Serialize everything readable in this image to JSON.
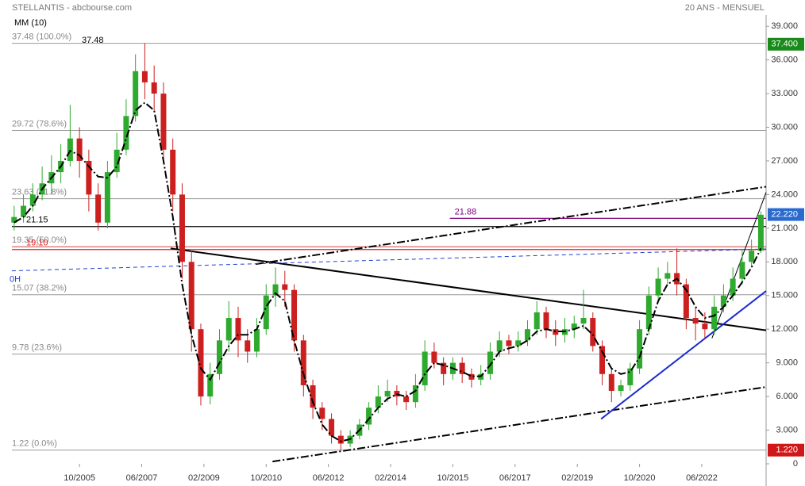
{
  "chart_data": {
    "type": "candlestick",
    "title": "STELLANTIS - abcbourse.com",
    "subtitle": "20 ANS - MENSUEL",
    "indicator_label": "MM (10)",
    "peak_label": "37.48",
    "up_color": "#2eaa2e",
    "down_color": "#cc2020",
    "x": [
      2004,
      2004.25,
      2004.5,
      2004.75,
      2005,
      2005.25,
      2005.5,
      2005.75,
      2006,
      2006.25,
      2006.5,
      2006.75,
      2007,
      2007.25,
      2007.5,
      2007.75,
      2008,
      2008.25,
      2008.5,
      2008.75,
      2009,
      2009.25,
      2009.5,
      2009.75,
      2010,
      2010.25,
      2010.5,
      2010.75,
      2011,
      2011.25,
      2011.5,
      2011.75,
      2012,
      2012.25,
      2012.5,
      2012.75,
      2013,
      2013.25,
      2013.5,
      2013.75,
      2014,
      2014.25,
      2014.5,
      2014.75,
      2015,
      2015.25,
      2015.5,
      2015.75,
      2016,
      2016.25,
      2016.5,
      2016.75,
      2017,
      2017.25,
      2017.5,
      2017.75,
      2018,
      2018.25,
      2018.5,
      2018.75,
      2019,
      2019.25,
      2019.5,
      2019.75,
      2020,
      2020.25,
      2020.5,
      2020.75,
      2021,
      2021.25,
      2021.5,
      2021.75,
      2022,
      2022.25,
      2022.5,
      2022.75,
      2023,
      2023.25,
      2023.5,
      2023.75,
      2024
    ],
    "open": [
      21.5,
      22,
      23,
      24,
      25,
      26,
      27,
      29,
      27,
      24,
      21.5,
      26,
      28,
      31,
      35,
      34,
      33,
      28,
      24,
      18,
      12,
      6,
      8,
      11,
      13,
      11,
      10,
      12,
      15,
      16,
      15.5,
      11,
      7,
      5,
      4,
      2.5,
      1.8,
      2.5,
      3.5,
      5,
      6,
      6.5,
      6,
      5.5,
      7,
      10,
      9,
      8,
      9,
      8,
      7.5,
      8,
      10,
      11,
      10.5,
      11,
      12,
      13.5,
      12,
      11.5,
      12,
      12.5,
      13,
      10.5,
      8,
      6.5,
      7,
      8.5,
      12,
      15,
      16.5,
      17,
      16,
      13,
      12.5,
      12,
      14,
      15,
      16.5,
      18,
      19
    ],
    "high": [
      23,
      24,
      25,
      26.5,
      27.5,
      28.5,
      32,
      30,
      28,
      25,
      27,
      29.5,
      32.5,
      36.5,
      37.48,
      35.5,
      34,
      29,
      25,
      19,
      12.5,
      9,
      12,
      14.5,
      14,
      12,
      13,
      16,
      17.5,
      17.2,
      16,
      11.5,
      7.5,
      5.5,
      4.5,
      3,
      3,
      4,
      5.5,
      7,
      7.5,
      7,
      6.5,
      8,
      11,
      10.8,
      9.5,
      9.5,
      9.5,
      8.5,
      8.8,
      10.8,
      11.8,
      11.5,
      11.8,
      12.8,
      14.5,
      14,
      12.8,
      13,
      13.2,
      15.5,
      13.5,
      11,
      8.5,
      7.5,
      9,
      12.8,
      15.8,
      17.5,
      18,
      19.2,
      16.5,
      14,
      13.5,
      15,
      16,
      17.5,
      19,
      20,
      22.5
    ],
    "low": [
      20.8,
      21.5,
      22.5,
      23.5,
      24,
      25,
      26.5,
      25.5,
      22.5,
      20.8,
      21,
      25.5,
      27.5,
      30.5,
      32.5,
      31.5,
      27,
      22.5,
      16.5,
      10,
      5.2,
      5.3,
      7.5,
      10,
      9.5,
      9,
      9.5,
      11.5,
      14,
      14,
      10,
      6,
      4,
      3,
      1.8,
      1.22,
      1.5,
      2.2,
      3,
      4.5,
      5.5,
      5.2,
      4.8,
      5,
      6.5,
      8.5,
      7,
      7.5,
      7.2,
      6.8,
      7,
      7.5,
      9.5,
      9.8,
      10,
      10.5,
      11.5,
      11.2,
      10.5,
      10.8,
      11.2,
      12,
      10,
      7,
      5.5,
      6,
      6.5,
      8,
      11.5,
      14.5,
      16,
      15,
      12,
      11,
      11.2,
      11.5,
      13.5,
      14.5,
      16,
      17.5,
      18.8
    ],
    "close": [
      22,
      23,
      24,
      25,
      26,
      27,
      29,
      27,
      24,
      21.5,
      26,
      28,
      31,
      35,
      34,
      33,
      28,
      24,
      18,
      12,
      6,
      8,
      11,
      13,
      11,
      10,
      12,
      15,
      16,
      15.5,
      11,
      7,
      5,
      4,
      2.5,
      1.8,
      2.5,
      3.5,
      5,
      6,
      6.5,
      6,
      5.5,
      7,
      10,
      9,
      8,
      9,
      8,
      7.5,
      8,
      10,
      11,
      10.5,
      11,
      12,
      13.5,
      12,
      11.5,
      12,
      12.5,
      13,
      10.5,
      8,
      6.5,
      7,
      8.5,
      12,
      15,
      16.5,
      17,
      16,
      13,
      12.5,
      12,
      14,
      15,
      16.5,
      18,
      19,
      22.2
    ],
    "ma": {
      "name": "MM (10)",
      "color": "#000000",
      "values": [
        21.5,
        22,
        23,
        24.5,
        25.5,
        26.5,
        27.9,
        27.5,
        26.5,
        25.6,
        25.5,
        26.5,
        29,
        31.5,
        32.2,
        31.5,
        27,
        22,
        16,
        11.5,
        8.5,
        7.5,
        9,
        10.5,
        11.5,
        11.5,
        12,
        14,
        15.2,
        14.5,
        11,
        8,
        5.5,
        3.5,
        2.5,
        2,
        2.2,
        3,
        4,
        5,
        5.8,
        6.2,
        6,
        6.5,
        8,
        9,
        8.8,
        8.5,
        8.2,
        7.8,
        7.8,
        8.8,
        10,
        10.3,
        10.5,
        11,
        11.8,
        12,
        11.8,
        11.8,
        12,
        12.3,
        11.5,
        10,
        8.5,
        8,
        8.2,
        9.5,
        12,
        14.5,
        16,
        16.5,
        15.5,
        14,
        13,
        13.2,
        14,
        15,
        16.2,
        17.5,
        19.2
      ]
    },
    "xlim": [
      2003.94,
      2024.14
    ],
    "xticks": [
      {
        "value": 2005.75,
        "label": "10/2005"
      },
      {
        "value": 2007.4167,
        "label": "06/2007"
      },
      {
        "value": 2009.0833,
        "label": "02/2009"
      },
      {
        "value": 2010.75,
        "label": "10/2010"
      },
      {
        "value": 2012.4167,
        "label": "06/2012"
      },
      {
        "value": 2014.0833,
        "label": "02/2014"
      },
      {
        "value": 2015.75,
        "label": "10/2015"
      },
      {
        "value": 2017.4167,
        "label": "06/2017"
      },
      {
        "value": 2019.0833,
        "label": "02/2019"
      },
      {
        "value": 2020.75,
        "label": "10/2020"
      },
      {
        "value": 2022.4167,
        "label": "06/2022"
      }
    ],
    "ylim": [
      0,
      40
    ],
    "yticks": [
      0,
      {
        "value": 3,
        "label": "3.000"
      },
      {
        "value": 6,
        "label": "6.000"
      },
      {
        "value": 9,
        "label": "9.000"
      },
      {
        "value": 12,
        "label": "12.000"
      },
      {
        "value": 15,
        "label": "15.000"
      },
      {
        "value": 18,
        "label": "18.000"
      },
      {
        "value": 21,
        "label": "21.000"
      },
      {
        "value": 24,
        "label": "24.000"
      },
      {
        "value": 27,
        "label": "27.000"
      },
      {
        "value": 30,
        "label": "30.000"
      },
      {
        "value": 33,
        "label": "33.000"
      },
      {
        "value": 36,
        "label": "36.000"
      },
      {
        "value": 39,
        "label": "39.000"
      }
    ],
    "fib_levels": [
      {
        "value": 37.48,
        "label": "37.48 (100.0%)",
        "color": "#999999"
      },
      {
        "value": 29.72,
        "label": "29.72 (78.6%)",
        "color": "#999999"
      },
      {
        "value": 23.63,
        "label": "23.63 (61.8%)",
        "color": "#999999"
      },
      {
        "value": 19.35,
        "label": "19.35 (50.0%)",
        "color": "#d04040"
      },
      {
        "value": 15.07,
        "label": "15.07 (38.2%)",
        "color": "#999999"
      },
      {
        "value": 9.78,
        "label": "9.78 (23.6%)",
        "color": "#999999"
      },
      {
        "value": 1.22,
        "label": "1.22 (0.0%)",
        "color": "#999999"
      }
    ],
    "levels": [
      {
        "value": 21.15,
        "label": "21.15",
        "color": "#000000",
        "start": 2003.94
      },
      {
        "value": 21.88,
        "label": "21.88",
        "color": "#800080",
        "start": 2015.67
      },
      {
        "value": 19.1,
        "label": "19.10",
        "color": "#e02020",
        "start": 2003.94
      }
    ],
    "trendlines": [
      {
        "x": [
          2010.47,
          2024.14
        ],
        "y": [
          17.8,
          24.7
        ],
        "color": "#000000",
        "dash": "dashdot"
      },
      {
        "x": [
          2010.92,
          2024.14
        ],
        "y": [
          0.2,
          6.85
        ],
        "color": "#000000",
        "dash": "dashdot"
      },
      {
        "x": [
          2008.19,
          2024.14
        ],
        "y": [
          19.2,
          11.9
        ],
        "color": "#000000",
        "dash": "solid"
      },
      {
        "x": [
          2019.72,
          2024.14
        ],
        "y": [
          4,
          15.4
        ],
        "color": "#1a2ad0",
        "dash": "solid"
      },
      {
        "x": [
          2022.69,
          2024.14
        ],
        "y": [
          11.2,
          24.2
        ],
        "color": "#000000",
        "dash": "thin"
      },
      {
        "x": [
          2003.94,
          2024.14
        ],
        "y": [
          17.2,
          19.15
        ],
        "color": "#2040d0",
        "dash": "dashed",
        "label": "0H"
      }
    ],
    "badges": [
      {
        "value": 37.4,
        "label": "37.400",
        "color": "#1a8a1a"
      },
      {
        "value": 22.22,
        "label": "22.220",
        "color": "#2a6ad0"
      },
      {
        "value": 1.22,
        "label": "1.220",
        "color": "#d01818"
      }
    ]
  }
}
